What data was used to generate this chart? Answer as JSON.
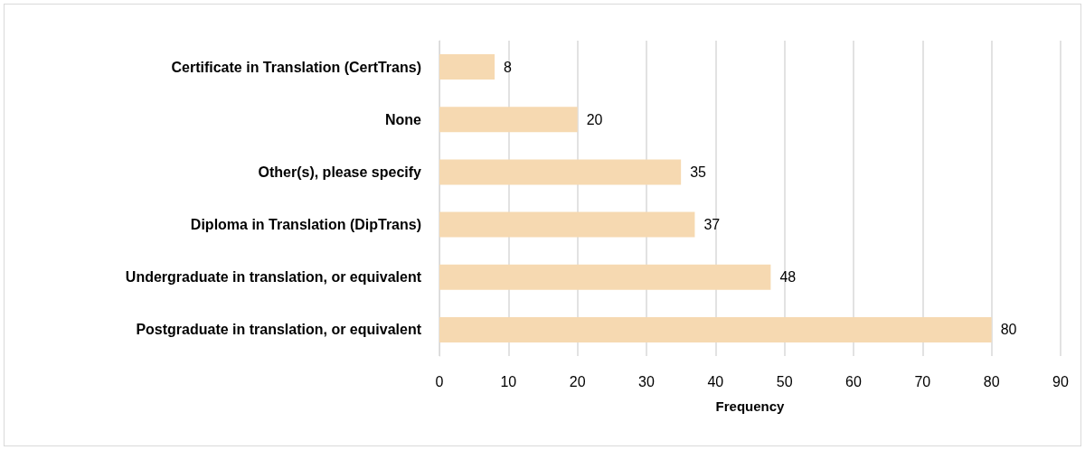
{
  "chart_data": {
    "type": "bar",
    "orientation": "horizontal",
    "xlabel": "Frequency",
    "categories": [
      "Certificate in Translation (CertTrans)",
      "None",
      "Other(s), please specify",
      "Diploma in Translation (DipTrans)",
      "Undergraduate in translation, or equivalent",
      "Postgraduate in translation, or equivalent"
    ],
    "values": [
      8,
      20,
      35,
      37,
      48,
      80
    ],
    "color": "#f6d9b1",
    "xlim": [
      0,
      90
    ],
    "xticks": [
      0,
      10,
      20,
      30,
      40,
      50,
      60,
      70,
      80,
      90
    ],
    "grid": "x",
    "data_labels": true
  }
}
